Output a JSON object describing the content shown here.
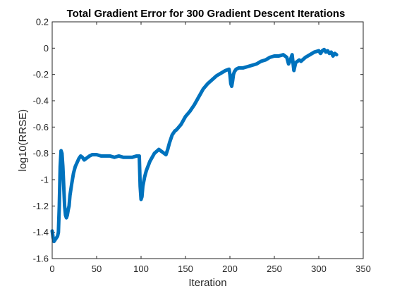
{
  "chart_data": {
    "type": "line",
    "title": "Total Gradient Error for 300 Gradient Descent Iterations",
    "xlabel": "Iteration",
    "ylabel": "log10(RRSE)",
    "xlim": [
      0,
      350
    ],
    "ylim": [
      -1.6,
      0.2
    ],
    "xticks": [
      0,
      50,
      100,
      150,
      200,
      250,
      300,
      350
    ],
    "xtick_labels": [
      "0",
      "50",
      "100",
      "150",
      "200",
      "250",
      "300",
      "350"
    ],
    "yticks": [
      0.2,
      0,
      -0.2,
      -0.4,
      -0.6,
      -0.8,
      -1,
      -1.2,
      -1.4,
      -1.6
    ],
    "ytick_labels": [
      "0.2",
      "0",
      "-0.2",
      "-0.4",
      "-0.6",
      "-0.8",
      "-1",
      "-1.2",
      "-1.4",
      "-1.6"
    ],
    "grid": false,
    "series": [
      {
        "name": "log10(RRSE)",
        "color": "#0072BD",
        "x": [
          0,
          1,
          2,
          4,
          6,
          7,
          8,
          9,
          10,
          11,
          12,
          13,
          14,
          15,
          16,
          17,
          18,
          19,
          20,
          22,
          24,
          26,
          28,
          30,
          32,
          34,
          36,
          38,
          40,
          42,
          45,
          50,
          55,
          60,
          65,
          70,
          75,
          80,
          85,
          90,
          95,
          98,
          99,
          100,
          101,
          102,
          104,
          106,
          110,
          115,
          120,
          122,
          124,
          126,
          128,
          130,
          132,
          135,
          138,
          140,
          145,
          150,
          155,
          160,
          165,
          170,
          175,
          180,
          185,
          190,
          195,
          199,
          200,
          201,
          202,
          203,
          204,
          205,
          207,
          210,
          215,
          220,
          225,
          230,
          235,
          240,
          245,
          250,
          255,
          260,
          264,
          266,
          268,
          270,
          272,
          274,
          276,
          278,
          280,
          285,
          290,
          295,
          300,
          302,
          304,
          306,
          308,
          310,
          312,
          314,
          316,
          318,
          320
        ],
        "y": [
          -1.39,
          -1.44,
          -1.47,
          -1.45,
          -1.43,
          -1.4,
          -1.2,
          -0.9,
          -0.78,
          -0.8,
          -0.9,
          -1.05,
          -1.2,
          -1.27,
          -1.29,
          -1.27,
          -1.23,
          -1.2,
          -1.12,
          -1.03,
          -0.95,
          -0.9,
          -0.87,
          -0.84,
          -0.82,
          -0.83,
          -0.85,
          -0.84,
          -0.83,
          -0.82,
          -0.81,
          -0.81,
          -0.82,
          -0.82,
          -0.82,
          -0.83,
          -0.82,
          -0.83,
          -0.83,
          -0.83,
          -0.82,
          -0.82,
          -1.05,
          -1.15,
          -1.13,
          -1.05,
          -0.98,
          -0.93,
          -0.86,
          -0.8,
          -0.77,
          -0.78,
          -0.79,
          -0.8,
          -0.81,
          -0.77,
          -0.72,
          -0.66,
          -0.63,
          -0.62,
          -0.58,
          -0.52,
          -0.48,
          -0.43,
          -0.37,
          -0.31,
          -0.27,
          -0.24,
          -0.21,
          -0.19,
          -0.17,
          -0.16,
          -0.2,
          -0.27,
          -0.29,
          -0.25,
          -0.2,
          -0.18,
          -0.16,
          -0.15,
          -0.15,
          -0.14,
          -0.13,
          -0.12,
          -0.1,
          -0.09,
          -0.07,
          -0.06,
          -0.06,
          -0.05,
          -0.07,
          -0.12,
          -0.09,
          -0.05,
          -0.17,
          -0.11,
          -0.1,
          -0.09,
          -0.1,
          -0.07,
          -0.05,
          -0.03,
          -0.02,
          -0.04,
          -0.02,
          -0.01,
          -0.03,
          -0.02,
          -0.04,
          -0.03,
          -0.06,
          -0.04,
          -0.05
        ]
      }
    ]
  }
}
